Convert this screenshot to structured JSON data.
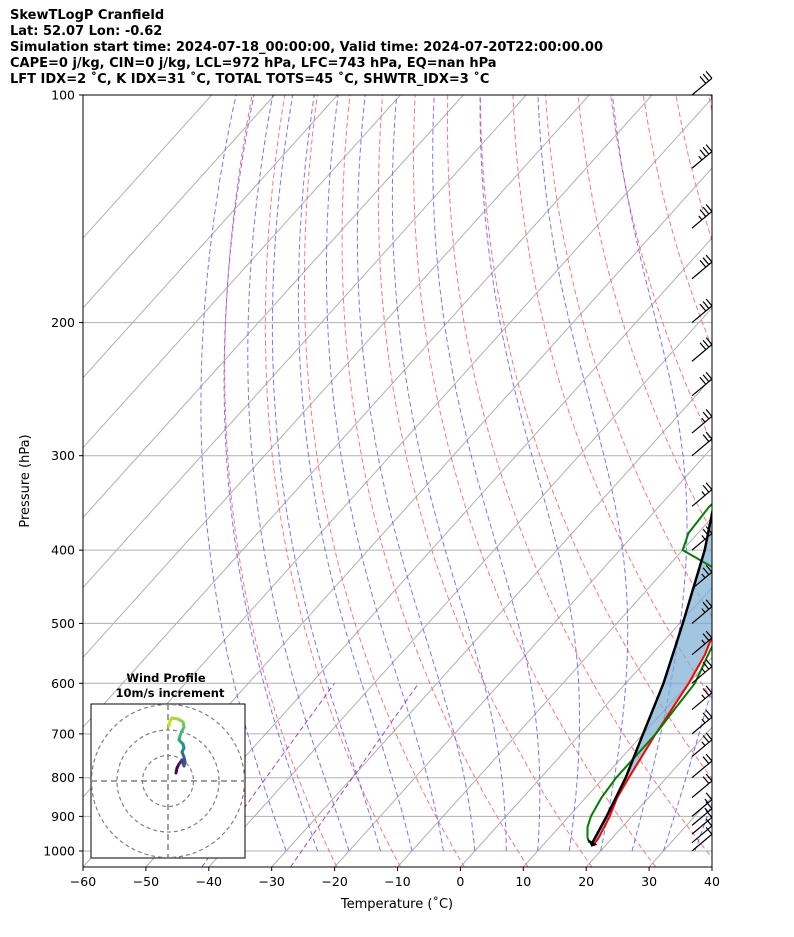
{
  "header": {
    "line1": "SkewTLogP Cranfield",
    "line2": "Lat: 52.07   Lon: -0.62",
    "line3": "Simulation start time: 2024-07-18_00:00:00, Valid time: 2024-07-20T22:00:00.00",
    "line4": "CAPE=0 j/kg, CIN=0 j/kg, LCL=972 hPa, LFC=743 hPa, EQ=nan hPa",
    "line5": "LFT IDX=2 ˚C, K IDX=31 ˚C, TOTAL TOTS=45 ˚C, SHWTR_IDX=3 ˚C"
  },
  "chart_data": {
    "type": "line",
    "xlabel": "Temperature (˚C)",
    "ylabel": "Pressure (hPa)",
    "xlim": [
      -60,
      40
    ],
    "ylim": [
      1050,
      100
    ],
    "y_scale": "log",
    "grid": true,
    "x_ticks": [
      -60,
      -50,
      -40,
      -30,
      -20,
      -10,
      0,
      10,
      20,
      30,
      40
    ],
    "y_ticks": [
      1000,
      900,
      800,
      700,
      600,
      500,
      400,
      300,
      200,
      100
    ],
    "colors": {
      "temperature": "#ff0000",
      "dewpoint": "#008000",
      "parcel": "#000000",
      "cape_fill": "#7aaed2",
      "dry_adiabat": "#ff6666",
      "moist_adiabat": "#6666ff",
      "mixing_ratio": "#9933cc",
      "isotherm": "#b0b0b0"
    },
    "series": [
      {
        "key": "temperature",
        "p": [
          980,
          960,
          900,
          850,
          800,
          700,
          600,
          550,
          500,
          450,
          400,
          350,
          300,
          280,
          260,
          250,
          230,
          210,
          200,
          180,
          170,
          160,
          150,
          140,
          130,
          120,
          110,
          100
        ],
        "t": [
          18,
          17.8,
          16.5,
          15,
          14,
          12,
          10,
          8.5,
          6,
          3.5,
          1,
          -3,
          -7.5,
          -10,
          -11.5,
          -10,
          -7,
          -3.5,
          -2,
          4,
          6.5,
          8.5,
          11,
          12.5,
          13,
          14,
          15,
          16
        ]
      },
      {
        "key": "dewpoint",
        "p": [
          975,
          960,
          930,
          900,
          850,
          800,
          750,
          700,
          650,
          600,
          550,
          500,
          450,
          430,
          400,
          380,
          350,
          320,
          300,
          260,
          240,
          220,
          200,
          190,
          180,
          170,
          160,
          140,
          120,
          100
        ],
        "t": [
          17,
          16,
          14.5,
          13.5,
          12.5,
          12,
          12,
          12,
          11.5,
          11,
          9,
          7,
          4,
          0,
          -10,
          -11.5,
          -12,
          -10.5,
          -11.5,
          -14,
          -16,
          -19,
          -24,
          -29,
          -29,
          -27,
          -24,
          -18,
          -10,
          -5
        ]
      },
      {
        "key": "parcel",
        "p": [
          975,
          900,
          800,
          700,
          600,
          500,
          400,
          300,
          250,
          200,
          150,
          100
        ],
        "t": [
          17.5,
          16,
          13.5,
          10,
          6,
          0.5,
          -6.5,
          -17,
          -24.5,
          -34,
          -44,
          -56
        ]
      }
    ],
    "wind_barbs": {
      "color": "#000000",
      "p": [
        1000,
        975,
        950,
        925,
        900,
        850,
        800,
        750,
        700,
        650,
        600,
        550,
        500,
        450,
        400,
        350,
        300,
        280,
        250,
        225,
        200,
        175,
        150,
        125,
        100
      ],
      "speed_kt": [
        10,
        10,
        10,
        15,
        15,
        20,
        20,
        25,
        25,
        25,
        25,
        25,
        25,
        25,
        25,
        25,
        20,
        25,
        30,
        30,
        30,
        30,
        35,
        35,
        30
      ]
    },
    "inset": {
      "title": "Wind Profile",
      "subtitle": "10m/s increment",
      "rings_ms": [
        10,
        20,
        30
      ]
    }
  }
}
